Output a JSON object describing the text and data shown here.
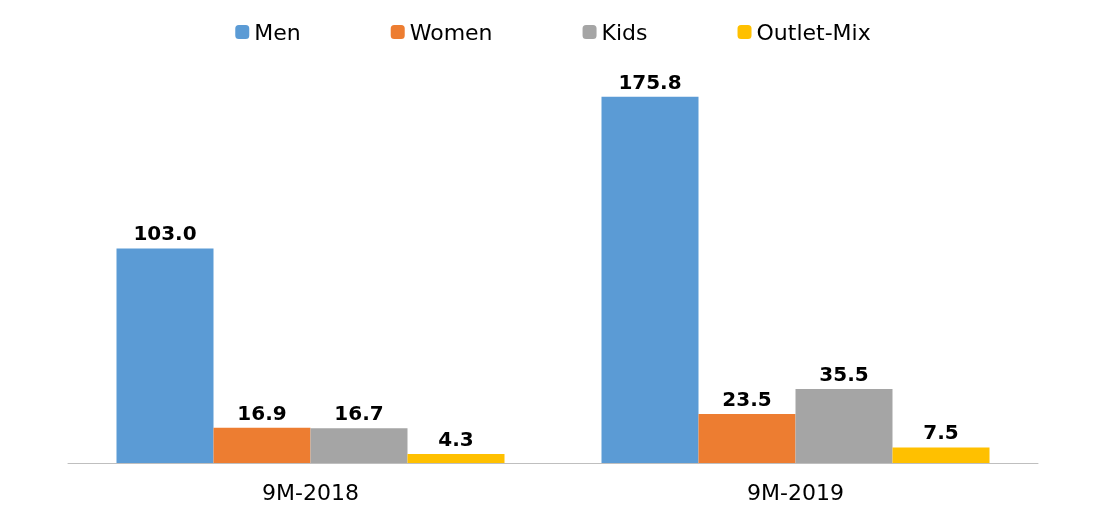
{
  "chart_data": {
    "type": "bar",
    "categories": [
      "9M-2018",
      "9M-2019"
    ],
    "series": [
      {
        "name": "Men",
        "color": "#5b9bd5",
        "values": [
          103.0,
          175.8
        ],
        "value_labels": [
          "103.0",
          "175.8"
        ]
      },
      {
        "name": "Women",
        "color": "#ed7d31",
        "values": [
          16.9,
          23.5
        ],
        "value_labels": [
          "16.9",
          "23.5"
        ]
      },
      {
        "name": "Kids",
        "color": "#a5a5a5",
        "values": [
          16.7,
          35.5
        ],
        "value_labels": [
          "16.7",
          "35.5"
        ]
      },
      {
        "name": "Outlet-Mix",
        "color": "#ffc000",
        "values": [
          4.3,
          7.5
        ],
        "value_labels": [
          "4.3",
          "7.5"
        ]
      }
    ],
    "legend": "top"
  }
}
